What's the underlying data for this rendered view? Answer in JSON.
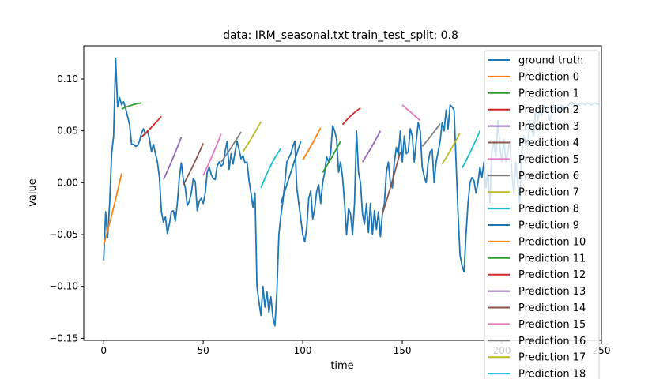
{
  "chart_data": {
    "type": "line",
    "title": "data: IRM_seasonal.txt train_test_split: 0.8",
    "xlabel": "time",
    "ylabel": "value",
    "xlim": [
      -10,
      250
    ],
    "ylim": [
      -0.152,
      0.132
    ],
    "x_ticks": [
      0,
      50,
      100,
      150,
      200,
      250
    ],
    "x_tick_labels": [
      "0",
      "50",
      "100",
      "150",
      "200",
      "250"
    ],
    "y_ticks": [
      -0.15,
      -0.1,
      -0.05,
      0.0,
      0.05,
      0.1
    ],
    "y_tick_labels": [
      "−0.15",
      "−0.10",
      "−0.05",
      "0.00",
      "0.05",
      "0.10"
    ],
    "grid": false,
    "legend_position": "upper-right",
    "series": [
      {
        "name": "ground truth",
        "color": "#1f77b4",
        "x": [
          0,
          1,
          2,
          3,
          4,
          5,
          6,
          7,
          8,
          9,
          10,
          11,
          12,
          13,
          14,
          15,
          16,
          17,
          18,
          19,
          20,
          21,
          22,
          23,
          24,
          25,
          26,
          27,
          28,
          29,
          30,
          31,
          32,
          33,
          34,
          35,
          36,
          37,
          38,
          39,
          40,
          41,
          42,
          43,
          44,
          45,
          46,
          47,
          48,
          49,
          50,
          51,
          52,
          53,
          54,
          55,
          56,
          57,
          58,
          59,
          60,
          61,
          62,
          63,
          64,
          65,
          66,
          67,
          68,
          69,
          70,
          71,
          72,
          73,
          74,
          75,
          76,
          77,
          78,
          79,
          80,
          81,
          82,
          83,
          84,
          85,
          86,
          87,
          88,
          89,
          90,
          91,
          92,
          93,
          94,
          95,
          96,
          97,
          98,
          99,
          100,
          101,
          102,
          103,
          104,
          105,
          106,
          107,
          108,
          109,
          110,
          111,
          112,
          113,
          114,
          115,
          116,
          117,
          118,
          119,
          120,
          121,
          122,
          123,
          124,
          125,
          126,
          127,
          128,
          129,
          130,
          131,
          132,
          133,
          134,
          135,
          136,
          137,
          138,
          139,
          140,
          141,
          142,
          143,
          144,
          145,
          146,
          147,
          148,
          149,
          150,
          151,
          152,
          153,
          154,
          155,
          156,
          157,
          158,
          159,
          160,
          161,
          162,
          163,
          164,
          165,
          166,
          167,
          168,
          169,
          170,
          171,
          172,
          173,
          174,
          175,
          176,
          177,
          178,
          179,
          180,
          181,
          182,
          183,
          184,
          185,
          186,
          187,
          188,
          189,
          190,
          191,
          192,
          193,
          194,
          195,
          196,
          197,
          198,
          199,
          200,
          201,
          202,
          203,
          204,
          205,
          206,
          207,
          208,
          209,
          210,
          211,
          212,
          213,
          214,
          215,
          216,
          217,
          218,
          219,
          220,
          221,
          222,
          223,
          224,
          225,
          226,
          227,
          228,
          229,
          230,
          231,
          232,
          233,
          234,
          235,
          236,
          237,
          238,
          239,
          240,
          241,
          242,
          243,
          244,
          245,
          246,
          247,
          248,
          249
        ],
        "y": [
          -0.075,
          -0.028,
          -0.053,
          -0.02,
          0.028,
          0.045,
          0.12,
          0.073,
          0.082,
          0.075,
          0.078,
          0.072,
          0.064,
          0.056,
          0.037,
          0.037,
          0.035,
          0.036,
          0.04,
          0.048,
          0.052,
          0.047,
          0.05,
          0.042,
          0.03,
          0.037,
          0.028,
          0.02,
          0.005,
          -0.028,
          -0.038,
          -0.033,
          -0.049,
          -0.04,
          -0.028,
          -0.027,
          -0.037,
          -0.02,
          0.005,
          0.019,
          0.003,
          -0.005,
          -0.022,
          -0.018,
          -0.01,
          0.004,
          0.001,
          -0.027,
          -0.018,
          -0.015,
          -0.02,
          -0.01,
          0.01,
          0.015,
          0.008,
          0.004,
          0.003,
          0.016,
          0.02,
          0.016,
          0.018,
          0.03,
          0.04,
          0.013,
          0.028,
          0.018,
          0.03,
          0.04,
          0.032,
          0.023,
          0.026,
          0.019,
          0.02,
          0.002,
          -0.01,
          -0.024,
          -0.01,
          -0.1,
          -0.115,
          -0.128,
          -0.1,
          -0.12,
          -0.105,
          -0.125,
          -0.11,
          -0.13,
          -0.138,
          -0.105,
          -0.05,
          -0.032,
          -0.018,
          0.0,
          0.02,
          0.024,
          0.028,
          0.035,
          0.04,
          -0.005,
          -0.02,
          -0.035,
          -0.05,
          -0.057,
          -0.043,
          -0.015,
          -0.008,
          -0.035,
          -0.025,
          -0.008,
          -0.002,
          -0.02,
          0.0,
          0.01,
          0.025,
          0.02,
          0.028,
          0.055,
          0.05,
          0.042,
          0.01,
          0.02,
          0.005,
          -0.02,
          -0.05,
          -0.025,
          -0.03,
          -0.05,
          -0.02,
          0.05,
          0.01,
          0.0,
          -0.03,
          -0.04,
          -0.02,
          -0.048,
          -0.02,
          -0.05,
          -0.027,
          -0.045,
          -0.028,
          -0.052,
          -0.03,
          -0.02,
          0.01,
          0.02,
          0.0,
          -0.005,
          0.02,
          0.034,
          0.027,
          0.05,
          0.02,
          0.045,
          0.028,
          0.03,
          0.052,
          0.045,
          0.02,
          0.04,
          0.058,
          0.05,
          0.015,
          0.006,
          0.0,
          0.02,
          0.03,
          0.032,
          0.0,
          0.02,
          0.03,
          0.04,
          0.058,
          0.05,
          0.07,
          0.052,
          0.075,
          0.073,
          0.07,
          0.02,
          -0.03,
          -0.07,
          -0.08,
          -0.086,
          -0.05,
          -0.02,
          0.0,
          0.005,
          0.002,
          -0.01,
          0.0,
          0.015,
          0.005,
          0.02,
          -0.005,
          0.01,
          -0.02,
          0.03,
          0.04,
          0.025,
          0.06,
          0.035,
          0.02,
          0.042,
          0.02,
          0.03,
          0.04,
          0.01,
          -0.01,
          0.02,
          0.0,
          -0.02,
          0.03,
          0.045,
          0.04,
          0.035,
          0.06,
          0.05,
          0.045,
          0.072,
          0.06,
          0.07,
          0.065,
          0.075,
          0.07,
          0.07,
          0.06,
          0.065,
          0.075,
          0.07,
          0.072,
          0.068,
          0.075,
          0.07,
          0.072,
          0.074,
          0.076,
          0.078,
          0.076,
          0.074,
          0.076,
          0.075,
          0.077,
          0.076,
          0.075,
          0.077,
          0.076,
          0.075,
          0.076,
          0.077,
          0.076,
          0.075
        ]
      },
      {
        "name": "Prediction 0",
        "color": "#ff7f0e",
        "x": [
          0,
          9
        ],
        "y": [
          -0.06,
          0.009
        ],
        "curve": 0.12
      },
      {
        "name": "Prediction 1",
        "color": "#2ca02c",
        "x": [
          9,
          19
        ],
        "y": [
          0.071,
          0.077
        ],
        "curve": -0.5
      },
      {
        "name": "Prediction 2",
        "color": "#d62728",
        "x": [
          19,
          29
        ],
        "y": [
          0.044,
          0.064
        ],
        "curve": 0.1
      },
      {
        "name": "Prediction 3",
        "color": "#9467bd",
        "x": [
          30,
          39
        ],
        "y": [
          0.003,
          0.044
        ],
        "curve": 0.1
      },
      {
        "name": "Prediction 4",
        "color": "#8c564b",
        "x": [
          40,
          50
        ],
        "y": [
          -0.002,
          0.038
        ],
        "curve": 0.1
      },
      {
        "name": "Prediction 5",
        "color": "#e377c2",
        "x": [
          50,
          59
        ],
        "y": [
          0.007,
          0.047
        ],
        "curve": 0.1
      },
      {
        "name": "Prediction 6",
        "color": "#7f7f7f",
        "x": [
          59,
          69
        ],
        "y": [
          0.02,
          0.049
        ],
        "curve": 0.1
      },
      {
        "name": "Prediction 7",
        "color": "#bcbd22",
        "x": [
          70,
          79
        ],
        "y": [
          0.03,
          0.059
        ],
        "curve": 0.1
      },
      {
        "name": "Prediction 8",
        "color": "#17becf",
        "x": [
          79,
          89
        ],
        "y": [
          -0.005,
          0.033
        ],
        "curve": -0.3
      },
      {
        "name": "Prediction 9",
        "color": "#1f77b4",
        "x": [
          89,
          99
        ],
        "y": [
          -0.02,
          0.04
        ],
        "curve": 0.0
      },
      {
        "name": "Prediction 10",
        "color": "#ff7f0e",
        "x": [
          100,
          109
        ],
        "y": [
          0.022,
          0.053
        ],
        "curve": 0.1
      },
      {
        "name": "Prediction 11",
        "color": "#2ca02c",
        "x": [
          110,
          119
        ],
        "y": [
          0.01,
          0.04
        ],
        "curve": 0.1
      },
      {
        "name": "Prediction 12",
        "color": "#d62728",
        "x": [
          120,
          129
        ],
        "y": [
          0.056,
          0.072
        ],
        "curve": -0.3
      },
      {
        "name": "Prediction 13",
        "color": "#9467bd",
        "x": [
          130,
          139
        ],
        "y": [
          0.02,
          0.05
        ],
        "curve": 0.1
      },
      {
        "name": "Prediction 14",
        "color": "#8c564b",
        "x": [
          140,
          149
        ],
        "y": [
          -0.03,
          0.03
        ],
        "curve": 0.1
      },
      {
        "name": "Prediction 15",
        "color": "#e377c2",
        "x": [
          150,
          159
        ],
        "y": [
          0.075,
          0.06
        ],
        "curve": 0.0
      },
      {
        "name": "Prediction 16",
        "color": "#7f7f7f",
        "x": [
          160,
          169
        ],
        "y": [
          0.035,
          0.057
        ],
        "curve": 0.1
      },
      {
        "name": "Prediction 17",
        "color": "#bcbd22",
        "x": [
          170,
          179
        ],
        "y": [
          0.018,
          0.048
        ],
        "curve": 0.1
      },
      {
        "name": "Prediction 18",
        "color": "#17becf",
        "x": [
          180,
          189
        ],
        "y": [
          0.014,
          0.05
        ],
        "curve": 0.1
      }
    ]
  }
}
